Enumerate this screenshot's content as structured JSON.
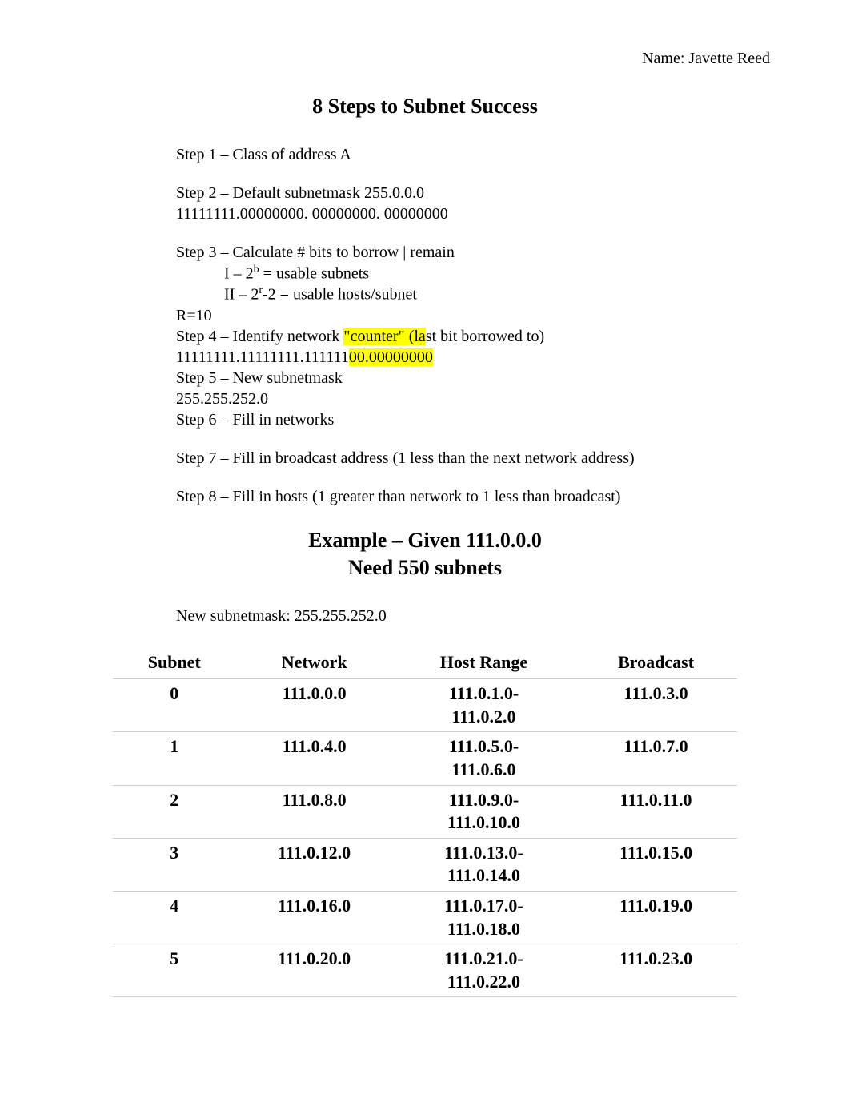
{
  "name_label": "Name: Javette Reed",
  "title": "8 Steps to Subnet Success",
  "steps": {
    "s1": "Step 1 – Class of address       A",
    "s2a": "Step 2 – Default subnetmask  255.0.0.0",
    "s2b": "11111111.00000000. 00000000. 00000000",
    "s3": "Step 3 – Calculate # bits to borrow | remain",
    "s3i_prefix": "I – 2",
    "s3i_sup": "b",
    "s3i_suffix": " = usable subnets",
    "s3ii_prefix": "II – 2",
    "s3ii_sup": "r",
    "s3ii_suffix": "-2 = usable hosts/subnet",
    "r": "R=10",
    "s4a": "Step 4 – Identify network ",
    "s4b_hl": "\"counter\" (la",
    "s4c": "st bit borrowed to)",
    "s4bin_a": "11111111.11111111.111111",
    "s4bin_hl": "00.00000000",
    "s5": "Step 5 – New subnetmask",
    "s5val": "255.255.252.0",
    "s6": "Step 6 – Fill in networks",
    "s7": "Step 7 – Fill in broadcast address (1 less than the next network address)",
    "s8": "Step 8 – Fill in hosts (1 greater than network to 1 less than broadcast)"
  },
  "example": {
    "title": "Example – Given 111.0.0.0",
    "subtitle": "Need 550 subnets",
    "mask_label": "New subnetmask: 255.255.252.0"
  },
  "table": {
    "columns": [
      "Subnet",
      "Network",
      "Host Range",
      "Broadcast"
    ],
    "rows": [
      {
        "subnet": "0",
        "network": "111.0.0.0",
        "range1": "111.0.1.0-",
        "range2": "111.0.2.0",
        "broadcast": "111.0.3.0"
      },
      {
        "subnet": "1",
        "network": "111.0.4.0",
        "range1": "111.0.5.0-",
        "range2": "111.0.6.0",
        "broadcast": "111.0.7.0"
      },
      {
        "subnet": "2",
        "network": "111.0.8.0",
        "range1": "111.0.9.0-",
        "range2": "111.0.10.0",
        "broadcast": "111.0.11.0"
      },
      {
        "subnet": "3",
        "network": "111.0.12.0",
        "range1": "111.0.13.0-",
        "range2": "111.0.14.0",
        "broadcast": "111.0.15.0"
      },
      {
        "subnet": "4",
        "network": "111.0.16.0",
        "range1": "111.0.17.0-",
        "range2": "111.0.18.0",
        "broadcast": "111.0.19.0"
      },
      {
        "subnet": "5",
        "network": "111.0.20.0",
        "range1": "111.0.21.0-",
        "range2": "111.0.22.0",
        "broadcast": "111.0.23.0"
      }
    ],
    "col_widths": [
      "22%",
      "26%",
      "28%",
      "24%"
    ],
    "border_color": "#cccccc",
    "cell_fontsize": 22
  },
  "colors": {
    "background": "#ffffff",
    "text": "#000000",
    "highlight": "#ffff00"
  },
  "typography": {
    "body_fontsize": 20,
    "title_fontsize": 26,
    "font_family": "Times New Roman"
  }
}
